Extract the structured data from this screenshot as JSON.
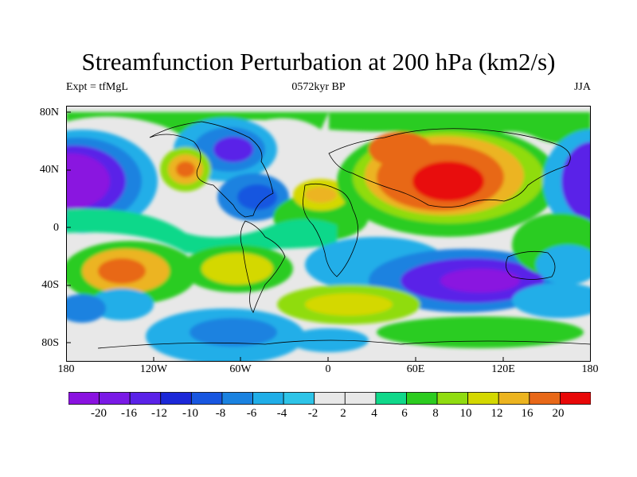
{
  "title": "Streamfunction Perturbation at 200 hPa (km2/s)",
  "subtitle_left": "Expt = tfMgL",
  "subtitle_center": "0572kyr BP",
  "subtitle_right": "JJA",
  "y_axis_labels": [
    "80N",
    "40N",
    "0",
    "40S",
    "80S"
  ],
  "x_axis_labels": [
    "180",
    "120W",
    "60W",
    "0",
    "60E",
    "120E",
    "180"
  ],
  "colorbar": {
    "levels": [
      "-20",
      "-16",
      "-12",
      "-10",
      "-8",
      "-6",
      "-4",
      "-2",
      "2",
      "4",
      "6",
      "8",
      "10",
      "12",
      "16",
      "20"
    ],
    "colors": [
      "#8a12e0",
      "#7a1ae6",
      "#5a22e8",
      "#1c28d8",
      "#1856e0",
      "#1a82e0",
      "#20aee8",
      "#2ec4e8",
      "#e8e8e8",
      "#10d88a",
      "#2ccc20",
      "#90dc10",
      "#d4d800",
      "#ecb420",
      "#e86818",
      "#e80808"
    ]
  }
}
